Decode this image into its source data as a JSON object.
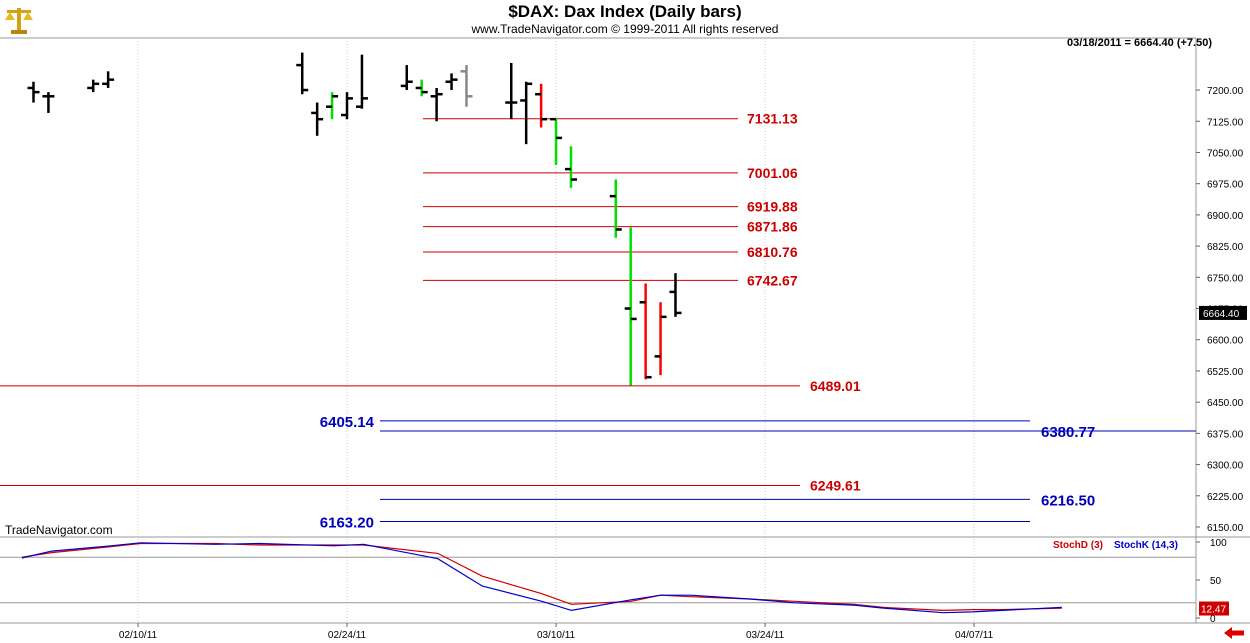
{
  "header": {
    "title": "$DAX:  Dax Index  (Daily bars)",
    "subtitle": "www.TradeNavigator.com © 1999-2011 All rights reserved",
    "readout": "03/18/2011 = 6664.40 (+7.50)",
    "brand": "TradeNavigator.com",
    "logo_icon": "scales-logo-icon"
  },
  "colors": {
    "up_bar": "#00e000",
    "down_bar": "#ff0000",
    "neutral_bar": "#000000",
    "red_level": "#cc0000",
    "blue_level": "#0000bb",
    "stoch_d": "#cc0000",
    "stoch_k": "#0000cc"
  },
  "chart_data": [
    {
      "type": "ohlc",
      "title": "$DAX:  Dax Index  (Daily bars)",
      "ylim": [
        6110,
        7285
      ],
      "y_ticks": [
        "7200.00",
        "7125.00",
        "7050.00",
        "6975.00",
        "6900.00",
        "6825.00",
        "6750.00",
        "6675.00",
        "6600.00",
        "6525.00",
        "6450.00",
        "6375.00",
        "6300.00",
        "6225.00",
        "6150.00"
      ],
      "y_tick_values": [
        7200,
        7125,
        7050,
        6975,
        6900,
        6825,
        6750,
        6675,
        6600,
        6525,
        6450,
        6375,
        6300,
        6225,
        6150
      ],
      "x_ticks": [
        "02/10/11",
        "02/24/11",
        "03/10/11",
        "03/24/11",
        "04/07/11"
      ],
      "last_price_label": "6664.40",
      "bars": [
        {
          "d": "02/03",
          "o": 7205,
          "h": 7220,
          "l": 7170,
          "c": 7195,
          "col": "black"
        },
        {
          "d": "02/04",
          "o": 7185,
          "h": 7195,
          "l": 7145,
          "c": 7185,
          "col": "black"
        },
        {
          "d": "02/07",
          "o": 7205,
          "h": 7225,
          "l": 7195,
          "c": 7215,
          "col": "black"
        },
        {
          "d": "02/08",
          "o": 7215,
          "h": 7245,
          "l": 7205,
          "c": 7225,
          "col": "black"
        },
        {
          "d": "02/21",
          "o": 7260,
          "h": 7290,
          "l": 7190,
          "c": 7200,
          "col": "black"
        },
        {
          "d": "02/22",
          "o": 7145,
          "h": 7170,
          "l": 7090,
          "c": 7130,
          "col": "black"
        },
        {
          "d": "02/23",
          "o": 7160,
          "h": 7195,
          "l": 7130,
          "c": 7185,
          "col": "up"
        },
        {
          "d": "02/24",
          "o": 7140,
          "h": 7195,
          "l": 7130,
          "c": 7180,
          "col": "black"
        },
        {
          "d": "02/25",
          "o": 7160,
          "h": 7285,
          "l": 7155,
          "c": 7180,
          "col": "black"
        },
        {
          "d": "02/28",
          "o": 7210,
          "h": 7260,
          "l": 7200,
          "c": 7220,
          "col": "black"
        },
        {
          "d": "03/01",
          "o": 7205,
          "h": 7225,
          "l": 7185,
          "c": 7195,
          "col": "up"
        },
        {
          "d": "03/02",
          "o": 7185,
          "h": 7205,
          "l": 7125,
          "c": 7190,
          "col": "black"
        },
        {
          "d": "03/03",
          "o": 7220,
          "h": 7240,
          "l": 7200,
          "c": 7225,
          "col": "black"
        },
        {
          "d": "03/04",
          "o": 7245,
          "h": 7260,
          "l": 7160,
          "c": 7185,
          "col": "grey"
        },
        {
          "d": "03/07",
          "o": 7170,
          "h": 7265,
          "l": 7130,
          "c": 7170,
          "col": "black"
        },
        {
          "d": "03/08",
          "o": 7175,
          "h": 7220,
          "l": 7070,
          "c": 7215,
          "col": "black"
        },
        {
          "d": "03/09",
          "o": 7190,
          "h": 7215,
          "l": 7110,
          "c": 7130,
          "col": "down"
        },
        {
          "d": "03/10",
          "o": 7130,
          "h": 7132,
          "l": 7020,
          "c": 7085,
          "col": "up"
        },
        {
          "d": "03/11",
          "o": 7010,
          "h": 7065,
          "l": 6965,
          "c": 6985,
          "col": "up"
        },
        {
          "d": "03/14",
          "o": 6945,
          "h": 6985,
          "l": 6845,
          "c": 6865,
          "col": "up"
        },
        {
          "d": "03/15",
          "o": 6675,
          "h": 6870,
          "l": 6490,
          "c": 6650,
          "col": "up"
        },
        {
          "d": "03/16",
          "o": 6690,
          "h": 6735,
          "l": 6505,
          "c": 6510,
          "col": "down"
        },
        {
          "d": "03/17",
          "o": 6560,
          "h": 6690,
          "l": 6515,
          "c": 6655,
          "col": "down"
        },
        {
          "d": "03/18",
          "o": 6715,
          "h": 6760,
          "l": 6655,
          "c": 6664.4,
          "col": "black"
        }
      ],
      "red_levels": [
        {
          "label": "7131.13",
          "value": 7131.13
        },
        {
          "label": "7001.06",
          "value": 7001.06
        },
        {
          "label": "6919.88",
          "value": 6919.88
        },
        {
          "label": "6871.86",
          "value": 6871.86
        },
        {
          "label": "6810.76",
          "value": 6810.76
        },
        {
          "label": "6742.67",
          "value": 6742.67
        },
        {
          "label": "6489.01",
          "value": 6489.01
        },
        {
          "label": "6249.61",
          "value": 6249.61
        }
      ],
      "blue_levels": [
        {
          "label": "6405.14",
          "value": 6405.14
        },
        {
          "label": "6380.77",
          "value": 6380.77
        },
        {
          "label": "6216.50",
          "value": 6216.5
        },
        {
          "label": "6163.20",
          "value": 6163.2
        }
      ]
    },
    {
      "type": "line",
      "title": "",
      "ylim": [
        0,
        100
      ],
      "y_ticks": [
        "100",
        "50",
        "0"
      ],
      "y_tick_values": [
        100,
        50,
        0
      ],
      "reference_lines": [
        80,
        20
      ],
      "last_value_label": "12.47",
      "series": [
        {
          "name": "StochD (3)",
          "color": "#cc0000",
          "points": [
            [
              "02/01",
              80
            ],
            [
              "02/03",
              86
            ],
            [
              "02/07",
              94
            ],
            [
              "02/09",
              98
            ],
            [
              "02/14",
              98
            ],
            [
              "02/17",
              96
            ],
            [
              "02/22",
              96
            ],
            [
              "02/24",
              96
            ],
            [
              "03/01",
              85
            ],
            [
              "03/04",
              55
            ],
            [
              "03/08",
              32
            ],
            [
              "03/10",
              18
            ],
            [
              "03/14",
              22
            ],
            [
              "03/16",
              30
            ],
            [
              "03/18",
              28
            ],
            [
              "03/22",
              25
            ],
            [
              "03/25",
              22
            ],
            [
              "03/29",
              18
            ],
            [
              "03/31",
              14
            ],
            [
              "04/04",
              10
            ],
            [
              "04/06",
              11
            ],
            [
              "04/08",
              11
            ],
            [
              "04/12",
              13
            ]
          ]
        },
        {
          "name": "StochK (14,3)",
          "color": "#0000cc",
          "points": [
            [
              "02/01",
              79
            ],
            [
              "02/03",
              88
            ],
            [
              "02/07",
              95
            ],
            [
              "02/09",
              99
            ],
            [
              "02/14",
              97
            ],
            [
              "02/17",
              98
            ],
            [
              "02/22",
              95
            ],
            [
              "02/24",
              97
            ],
            [
              "03/01",
              78
            ],
            [
              "03/04",
              42
            ],
            [
              "03/08",
              22
            ],
            [
              "03/10",
              10
            ],
            [
              "03/14",
              24
            ],
            [
              "03/16",
              30
            ],
            [
              "03/18",
              30
            ],
            [
              "03/22",
              25
            ],
            [
              "03/25",
              20
            ],
            [
              "03/29",
              17
            ],
            [
              "03/31",
              13
            ],
            [
              "04/04",
              7
            ],
            [
              "04/06",
              8
            ],
            [
              "04/08",
              10
            ],
            [
              "04/12",
              14
            ]
          ]
        }
      ]
    }
  ]
}
